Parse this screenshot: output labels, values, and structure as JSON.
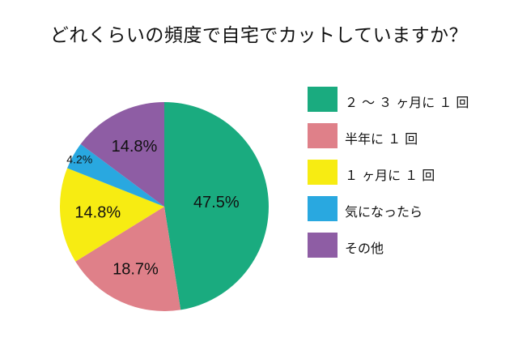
{
  "title": "どれくらいの頻度で自宅でカットしていますか？",
  "chart_data": {
    "type": "pie",
    "title": "どれくらいの頻度で自宅でカットしていますか？",
    "slices": [
      {
        "label": "2～3ヶ月に1回",
        "value": 47.5,
        "display": "47.5%",
        "color": "#1aab7f"
      },
      {
        "label": "半年に1回",
        "value": 18.7,
        "display": "18.7%",
        "color": "#df8089"
      },
      {
        "label": "1ヶ月に1回",
        "value": 14.8,
        "display": "14.8%",
        "color": "#f7ec12"
      },
      {
        "label": "気になったら",
        "value": 4.2,
        "display": "4.2%",
        "color": "#29a8e0"
      },
      {
        "label": "その他",
        "value": 14.8,
        "display": "14.8%",
        "color": "#8e5da4"
      }
    ],
    "legend_position": "right",
    "start_angle": "12 o'clock",
    "direction": "clockwise"
  },
  "legend": {
    "items": [
      {
        "label": "２ ～ ３ ヶ月に １ 回",
        "color": "#1aab7f"
      },
      {
        "label": "半年に １ 回",
        "color": "#df8089"
      },
      {
        "label": "１ ヶ月に １ 回",
        "color": "#f7ec12"
      },
      {
        "label": "気になったら",
        "color": "#29a8e0"
      },
      {
        "label": "その他",
        "color": "#8e5da4"
      }
    ]
  }
}
